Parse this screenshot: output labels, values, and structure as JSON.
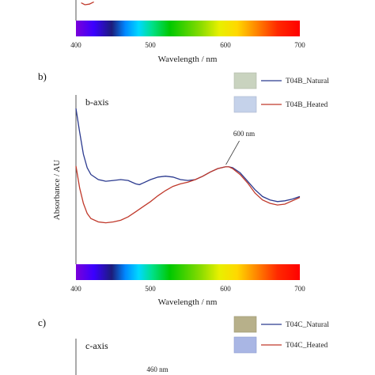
{
  "colors": {
    "natural": "#2b3a8f",
    "heated": "#c0392b",
    "axis": "#555555"
  },
  "spectrum_stops": [
    [
      "0%",
      "#7a00d9"
    ],
    [
      "8%",
      "#3a00ff"
    ],
    [
      "16%",
      "#1c1c7a"
    ],
    [
      "22%",
      "#0088ff"
    ],
    [
      "28%",
      "#00d8ff"
    ],
    [
      "34%",
      "#00e08a"
    ],
    [
      "42%",
      "#00c800"
    ],
    [
      "56%",
      "#8cdc00"
    ],
    [
      "64%",
      "#e8f000"
    ],
    [
      "72%",
      "#ffd800"
    ],
    [
      "80%",
      "#ff8c00"
    ],
    [
      "90%",
      "#ff2a00"
    ],
    [
      "100%",
      "#ff0000"
    ]
  ],
  "chart_data": [
    {
      "type": "line",
      "panel": "a",
      "xlabel": "Wavelength / nm",
      "xticks": [
        "400",
        "500",
        "600",
        "700"
      ],
      "xlim": [
        400,
        700
      ],
      "series": [
        {
          "name": "",
          "color_key": "heated",
          "x": [
            407,
            412,
            418,
            424
          ],
          "y": [
            0.55,
            0.25,
            0.35,
            0.7
          ]
        }
      ]
    },
    {
      "type": "line",
      "panel": "b",
      "panel_label": "b)",
      "axis_name": "b-axis",
      "xlabel": "Wavelength / nm",
      "ylabel": "Absorbance / AU",
      "xticks": [
        "400",
        "500",
        "600",
        "700"
      ],
      "xlim": [
        400,
        700
      ],
      "ylim": [
        0,
        1
      ],
      "annotation": {
        "text": "600 nm",
        "x": 602,
        "y": 0.57
      },
      "series": [
        {
          "name": "T04B_Natural",
          "color_key": "natural",
          "x": [
            400,
            405,
            410,
            415,
            420,
            430,
            440,
            450,
            460,
            470,
            480,
            485,
            490,
            500,
            510,
            520,
            530,
            540,
            550,
            560,
            570,
            580,
            590,
            600,
            605,
            610,
            620,
            630,
            640,
            650,
            660,
            670,
            680,
            690,
            700
          ],
          "y": [
            0.92,
            0.78,
            0.65,
            0.57,
            0.53,
            0.5,
            0.49,
            0.495,
            0.5,
            0.495,
            0.475,
            0.47,
            0.48,
            0.5,
            0.515,
            0.52,
            0.515,
            0.5,
            0.495,
            0.5,
            0.52,
            0.545,
            0.565,
            0.575,
            0.575,
            0.57,
            0.54,
            0.49,
            0.44,
            0.4,
            0.38,
            0.37,
            0.375,
            0.385,
            0.4
          ]
        },
        {
          "name": "T04B_Heated",
          "color_key": "heated",
          "x": [
            400,
            405,
            410,
            415,
            420,
            430,
            440,
            450,
            460,
            470,
            480,
            490,
            500,
            510,
            520,
            530,
            540,
            550,
            560,
            570,
            580,
            590,
            600,
            605,
            610,
            620,
            630,
            640,
            650,
            660,
            670,
            680,
            690,
            700
          ],
          "y": [
            0.58,
            0.45,
            0.36,
            0.3,
            0.27,
            0.25,
            0.245,
            0.25,
            0.26,
            0.28,
            0.31,
            0.34,
            0.37,
            0.405,
            0.435,
            0.46,
            0.475,
            0.485,
            0.5,
            0.52,
            0.545,
            0.565,
            0.575,
            0.575,
            0.565,
            0.53,
            0.48,
            0.42,
            0.38,
            0.36,
            0.35,
            0.355,
            0.375,
            0.395
          ]
        }
      ]
    },
    {
      "type": "line",
      "panel": "c",
      "panel_label": "c)",
      "axis_name": "c-axis",
      "annotation": {
        "text": "460 nm"
      },
      "series": [
        {
          "name": "T04C_Natural",
          "color_key": "natural"
        },
        {
          "name": "T04C_Heated",
          "color_key": "heated"
        }
      ]
    }
  ]
}
